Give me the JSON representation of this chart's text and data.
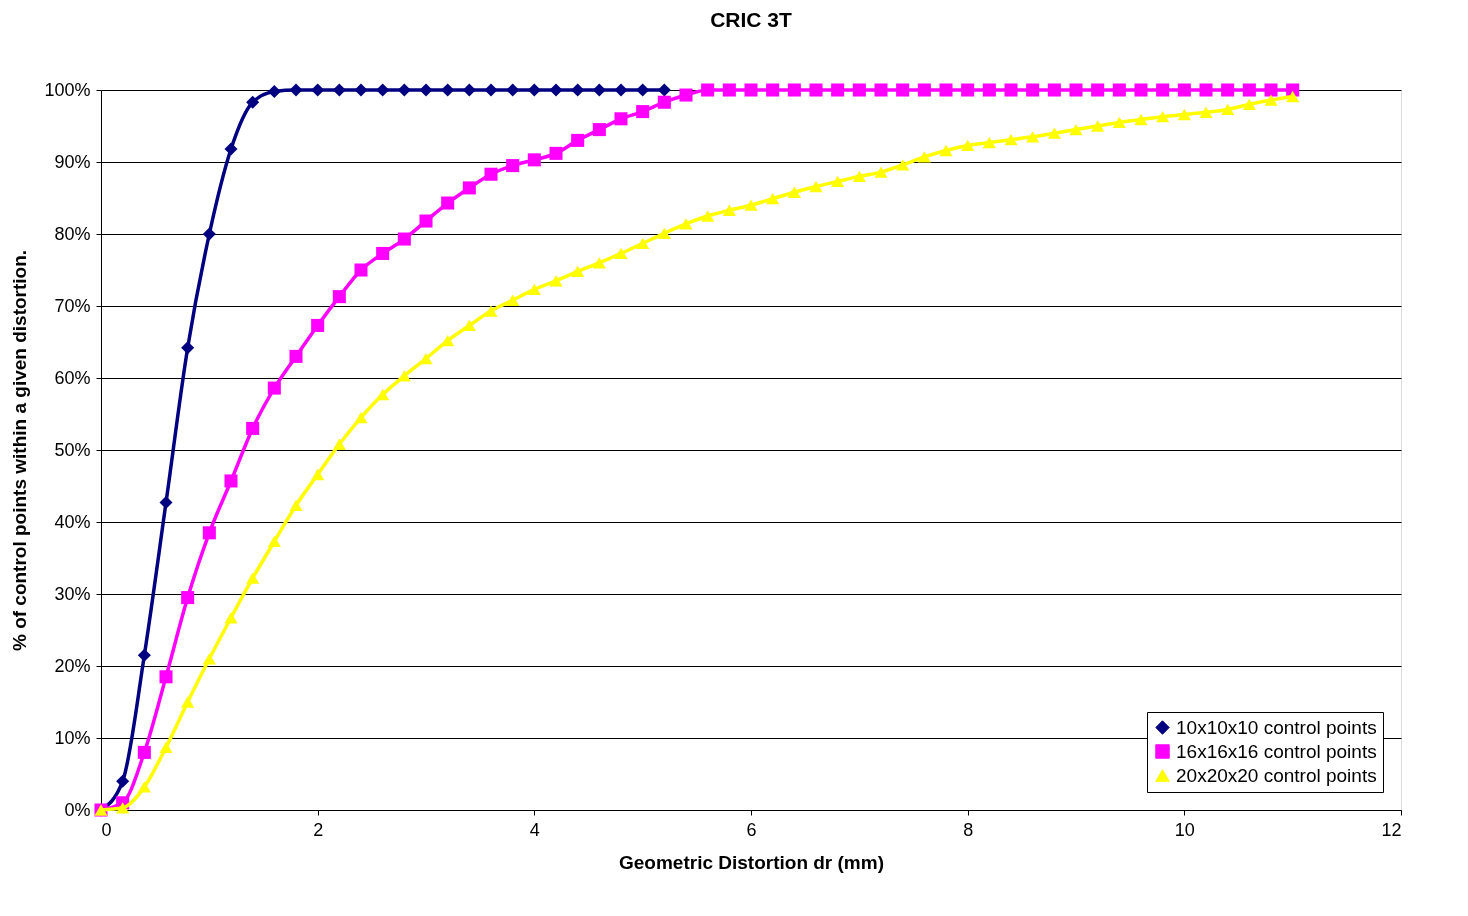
{
  "chart_data": {
    "type": "line",
    "title": "CRIC 3T",
    "xlabel": "Geometric Distortion dr (mm)",
    "ylabel": "% of control points within a given distortion.",
    "xlim": [
      0,
      12
    ],
    "xticks": [
      0,
      2,
      4,
      6,
      8,
      10,
      12
    ],
    "ylim": [
      0,
      100
    ],
    "yticks": [
      {
        "value": 0,
        "label": "0%"
      },
      {
        "value": 10,
        "label": "10%"
      },
      {
        "value": 20,
        "label": "20%"
      },
      {
        "value": 30,
        "label": "30%"
      },
      {
        "value": 40,
        "label": "40%"
      },
      {
        "value": 50,
        "label": "50%"
      },
      {
        "value": 60,
        "label": "60%"
      },
      {
        "value": 70,
        "label": "70%"
      },
      {
        "value": 80,
        "label": "80%"
      },
      {
        "value": 90,
        "label": "90%"
      },
      {
        "value": 100,
        "label": "100%"
      }
    ],
    "grid": "y",
    "legend": "bottom right",
    "line_style": "solid",
    "series": [
      {
        "name": "10x10x10 control points",
        "color": "#000080",
        "marker": "diamond",
        "x": [
          0,
          0.2,
          0.4,
          0.6,
          0.8,
          1.0,
          1.2,
          1.4,
          1.6,
          1.8,
          2.0,
          2.2,
          2.4,
          2.6,
          2.8,
          3.0,
          3.2,
          3.4,
          3.6,
          3.8,
          4.0,
          4.2,
          4.4,
          4.6,
          4.8,
          5.0,
          5.2
        ],
        "values": [
          0,
          4,
          21.5,
          42.7,
          64.2,
          80,
          91.8,
          98.3,
          99.8,
          100,
          100,
          100,
          100,
          100,
          100,
          100,
          100,
          100,
          100,
          100,
          100,
          100,
          100,
          100,
          100,
          100,
          100
        ]
      },
      {
        "name": "16x16x16 control points",
        "color": "#ff00ff",
        "marker": "square",
        "x": [
          0,
          0.2,
          0.4,
          0.6,
          0.8,
          1.0,
          1.2,
          1.4,
          1.6,
          1.8,
          2.0,
          2.2,
          2.4,
          2.6,
          2.8,
          3.0,
          3.2,
          3.4,
          3.6,
          3.8,
          4.0,
          4.2,
          4.4,
          4.6,
          4.8,
          5.0,
          5.2,
          5.4,
          5.6,
          5.8,
          6.0,
          6.2,
          6.4,
          6.6,
          6.8,
          7.0,
          7.2,
          7.4,
          7.6,
          7.8,
          8.0,
          8.2,
          8.4,
          8.6,
          8.8,
          9.0,
          9.2,
          9.4,
          9.6,
          9.8,
          10.0,
          10.2,
          10.4,
          10.6,
          10.8,
          11.0
        ],
        "values": [
          0,
          1,
          8,
          18.5,
          29.5,
          38.5,
          45.7,
          53,
          58.6,
          63,
          67.3,
          71.3,
          75,
          77.3,
          79.3,
          81.8,
          84.3,
          86.4,
          88.3,
          89.5,
          90.3,
          91.2,
          93,
          94.5,
          96,
          97,
          98.3,
          99.3,
          100,
          100,
          100,
          100,
          100,
          100,
          100,
          100,
          100,
          100,
          100,
          100,
          100,
          100,
          100,
          100,
          100,
          100,
          100,
          100,
          100,
          100,
          100,
          100,
          100,
          100,
          100,
          100
        ]
      },
      {
        "name": "20x20x20 control points",
        "color": "#ffff00",
        "marker": "triangle",
        "x": [
          0,
          0.2,
          0.4,
          0.6,
          0.8,
          1.0,
          1.2,
          1.4,
          1.6,
          1.8,
          2.0,
          2.2,
          2.4,
          2.6,
          2.8,
          3.0,
          3.2,
          3.4,
          3.6,
          3.8,
          4.0,
          4.2,
          4.4,
          4.6,
          4.8,
          5.0,
          5.2,
          5.4,
          5.6,
          5.8,
          6.0,
          6.2,
          6.4,
          6.6,
          6.8,
          7.0,
          7.2,
          7.4,
          7.6,
          7.8,
          8.0,
          8.2,
          8.4,
          8.6,
          8.8,
          9.0,
          9.2,
          9.4,
          9.6,
          9.8,
          10.0,
          10.2,
          10.4,
          10.6,
          10.8,
          11.0
        ],
        "values": [
          0,
          0.3,
          3.2,
          8.7,
          15,
          21,
          26.7,
          32.2,
          37.3,
          42.3,
          46.6,
          50.8,
          54.5,
          57.7,
          60.3,
          62.7,
          65.2,
          67.3,
          69.3,
          70.8,
          72.3,
          73.5,
          74.8,
          76,
          77.3,
          78.7,
          80.1,
          81.4,
          82.5,
          83.3,
          84,
          84.9,
          85.8,
          86.6,
          87.3,
          88,
          88.6,
          89.6,
          90.7,
          91.6,
          92.3,
          92.7,
          93.1,
          93.5,
          94,
          94.5,
          95,
          95.5,
          95.9,
          96.3,
          96.6,
          96.9,
          97.3,
          98,
          98.6,
          99.1
        ]
      }
    ]
  }
}
